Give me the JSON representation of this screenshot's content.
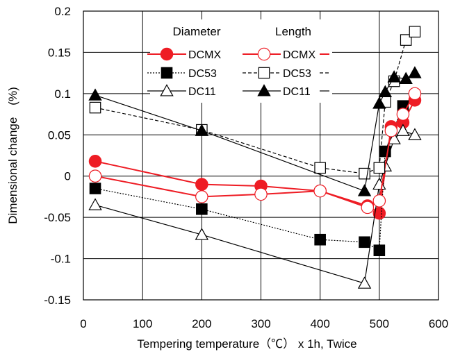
{
  "chart_data": {
    "type": "line",
    "xlabel": "Tempering temperature（℃） x 1h, Twice",
    "ylabel": "Dimensional change　(%)",
    "xlim": [
      0,
      600
    ],
    "ylim": [
      -0.15,
      0.2
    ],
    "x_ticks": [
      "0",
      "100",
      "200",
      "300",
      "400",
      "500",
      "600"
    ],
    "y_ticks": [
      "0.2",
      "0.15",
      "0.1",
      "0.05",
      "0",
      "-0.05",
      "-0.1",
      "-0.15"
    ],
    "grid": true,
    "legend": {
      "placement": "top-center",
      "diameter_title": "Diameter",
      "length_title": "Length"
    },
    "series": [
      {
        "name": "DCMX",
        "group": "Diameter",
        "color": "#ee1c24",
        "marker": "circle",
        "filled": true,
        "dash": "solid",
        "points": [
          [
            20,
            0.018
          ],
          [
            200,
            -0.01
          ],
          [
            300,
            -0.012
          ],
          [
            400,
            -0.018
          ],
          [
            480,
            -0.036
          ],
          [
            500,
            -0.045
          ],
          [
            520,
            0.06
          ],
          [
            540,
            0.065
          ],
          [
            560,
            0.092
          ]
        ]
      },
      {
        "name": "DC53",
        "group": "Diameter",
        "color": "#000000",
        "marker": "square",
        "filled": true,
        "dash": "dotted",
        "points": [
          [
            20,
            -0.015
          ],
          [
            200,
            -0.04
          ],
          [
            400,
            -0.077
          ],
          [
            475,
            -0.08
          ],
          [
            500,
            -0.09
          ],
          [
            510,
            0.03
          ],
          [
            540,
            0.085
          ]
        ]
      },
      {
        "name": "DC11",
        "group": "Diameter",
        "color": "#000000",
        "marker": "triangle",
        "filled": false,
        "dash": "solid",
        "points": [
          [
            20,
            -0.035
          ],
          [
            200,
            -0.071
          ],
          [
            475,
            -0.13
          ],
          [
            500,
            -0.01
          ],
          [
            510,
            0.012
          ],
          [
            525,
            0.045
          ],
          [
            540,
            0.055
          ],
          [
            560,
            0.05
          ]
        ]
      },
      {
        "name": "DCMX",
        "group": "Length",
        "color": "#ee1c24",
        "marker": "circle",
        "filled": false,
        "dash": "solid",
        "points": [
          [
            20,
            0.0
          ],
          [
            200,
            -0.025
          ],
          [
            300,
            -0.022
          ],
          [
            400,
            -0.018
          ],
          [
            480,
            -0.038
          ],
          [
            500,
            -0.03
          ],
          [
            520,
            0.055
          ],
          [
            540,
            0.075
          ],
          [
            560,
            0.1
          ]
        ]
      },
      {
        "name": "DC53",
        "group": "Length",
        "color": "#000000",
        "marker": "square",
        "filled": false,
        "dash": "dashed",
        "points": [
          [
            20,
            0.083
          ],
          [
            200,
            0.056
          ],
          [
            400,
            0.01
          ],
          [
            475,
            0.003
          ],
          [
            500,
            0.01
          ],
          [
            510,
            0.09
          ],
          [
            525,
            0.115
          ],
          [
            545,
            0.165
          ],
          [
            560,
            0.175
          ]
        ]
      },
      {
        "name": "DC11",
        "group": "Length",
        "color": "#000000",
        "marker": "triangle",
        "filled": true,
        "dash": "solid",
        "points": [
          [
            20,
            0.098
          ],
          [
            200,
            0.055
          ],
          [
            475,
            -0.018
          ],
          [
            500,
            0.088
          ],
          [
            510,
            0.102
          ],
          [
            525,
            0.12
          ],
          [
            545,
            0.118
          ],
          [
            560,
            0.125
          ]
        ]
      }
    ]
  }
}
